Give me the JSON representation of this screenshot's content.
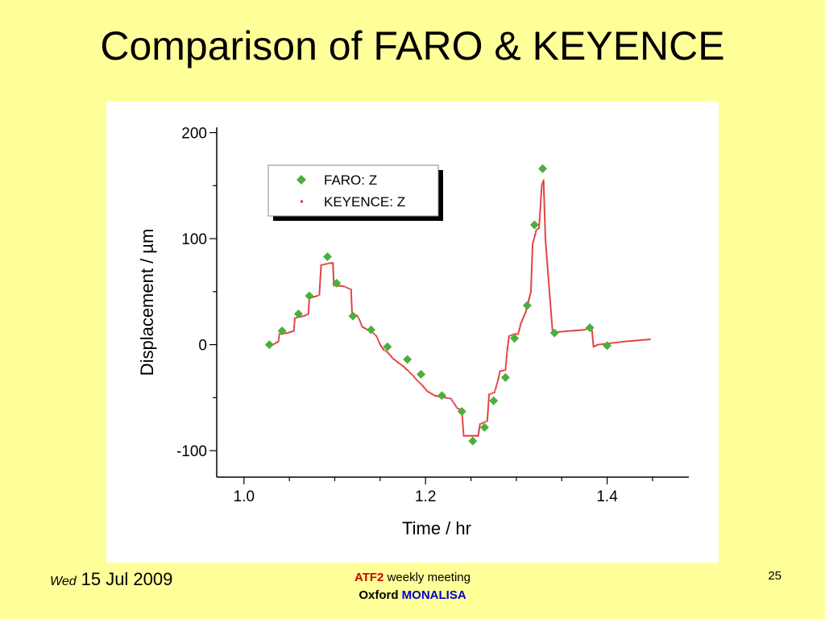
{
  "slide": {
    "title": "Comparison of FARO & KEYENCE",
    "footer": {
      "weekday": "Wed",
      "date": "15 Jul 2009",
      "meeting_highlight": "ATF2",
      "meeting_text": "weekly meeting",
      "org_prefix": "Oxford",
      "org_name": "MONALISA",
      "page_number": "25"
    }
  },
  "chart_data": {
    "type": "scatter",
    "title": "",
    "xlabel": "Time / hr",
    "ylabel": "Displacement / µm",
    "xlim": [
      0.97,
      1.49
    ],
    "ylim": [
      -125,
      205
    ],
    "xticks": [
      1.0,
      1.2,
      1.4
    ],
    "yticks": [
      -100,
      0,
      100,
      200
    ],
    "x_tick_labels": [
      "1.0",
      "1.2",
      "1.4"
    ],
    "y_tick_labels": [
      "-100",
      "0",
      "100",
      "200"
    ],
    "grid": false,
    "legend_position": "top-left",
    "colors": {
      "faro": "#4caf3c",
      "keyence": "#e03030"
    },
    "series": [
      {
        "name": "FARO: Z",
        "marker": "diamond",
        "x": [
          1.028,
          1.042,
          1.06,
          1.072,
          1.092,
          1.102,
          1.12,
          1.14,
          1.158,
          1.18,
          1.195,
          1.218,
          1.24,
          1.252,
          1.265,
          1.275,
          1.288,
          1.298,
          1.312,
          1.32,
          1.329,
          1.342,
          1.381,
          1.4
        ],
        "y": [
          0,
          13,
          29,
          46,
          83,
          58,
          27,
          14,
          -2,
          -14,
          -28,
          -48,
          -63,
          -91,
          -78,
          -53,
          -31,
          6,
          37,
          113,
          166,
          11,
          16,
          -1
        ]
      },
      {
        "name": "KEYENCE: Z",
        "marker": "dot",
        "x": [
          1.03,
          1.038,
          1.039,
          1.048,
          1.055,
          1.056,
          1.066,
          1.071,
          1.072,
          1.081,
          1.083,
          1.085,
          1.095,
          1.098,
          1.099,
          1.11,
          1.118,
          1.119,
          1.125,
          1.128,
          1.13,
          1.136,
          1.14,
          1.146,
          1.15,
          1.154,
          1.158,
          1.164,
          1.17,
          1.175,
          1.18,
          1.186,
          1.19,
          1.196,
          1.202,
          1.21,
          1.215,
          1.222,
          1.228,
          1.235,
          1.24,
          1.242,
          1.255,
          1.258,
          1.26,
          1.268,
          1.27,
          1.276,
          1.28,
          1.282,
          1.288,
          1.29,
          1.292,
          1.298,
          1.302,
          1.305,
          1.31,
          1.312,
          1.316,
          1.318,
          1.322,
          1.325,
          1.328,
          1.33,
          1.332,
          1.336,
          1.34,
          1.346,
          1.36,
          1.375,
          1.383,
          1.385,
          1.39,
          1.4,
          1.42,
          1.447
        ],
        "y": [
          -1,
          3,
          10,
          11,
          13,
          25,
          27,
          29,
          44,
          46,
          47,
          75,
          77,
          77,
          56,
          55,
          52,
          30,
          27,
          22,
          17,
          14,
          13,
          8,
          0,
          -5,
          -7,
          -13,
          -17,
          -20,
          -24,
          -29,
          -33,
          -38,
          -44,
          -48,
          -49,
          -50,
          -51,
          -60,
          -62,
          -86,
          -86,
          -86,
          -75,
          -72,
          -47,
          -45,
          -33,
          -25,
          -24,
          -5,
          8,
          10,
          10,
          20,
          30,
          36,
          50,
          95,
          108,
          110,
          150,
          155,
          100,
          55,
          11,
          12,
          13,
          14,
          16,
          -2,
          0,
          1,
          3,
          5
        ]
      }
    ]
  }
}
